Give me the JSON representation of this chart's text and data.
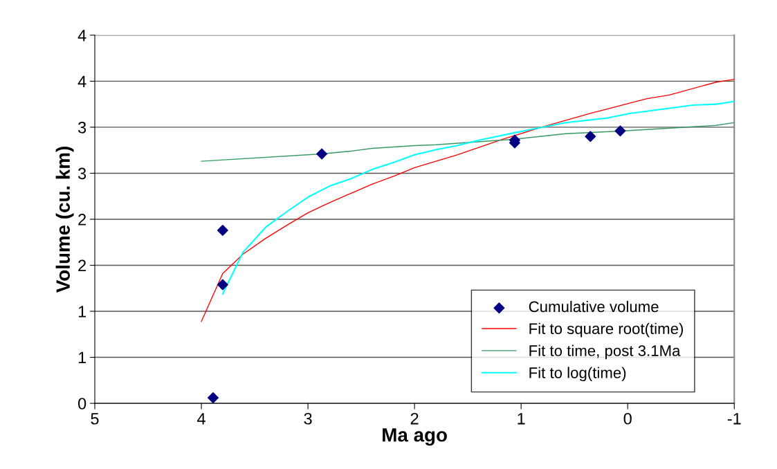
{
  "chart_data": {
    "type": "scatter",
    "xlabel": "Ma ago",
    "ylabel": "Volume (cu. km)",
    "xlim": [
      5,
      -1
    ],
    "xticks": [
      5,
      4,
      3,
      2,
      1,
      0,
      -1
    ],
    "ylim": [
      0,
      4
    ],
    "yticks": [
      0,
      {
        "value": 0.5,
        "label": "1"
      },
      1,
      {
        "value": 1.5,
        "label": "2"
      },
      2,
      {
        "value": 2.5,
        "label": "3"
      },
      3,
      {
        "value": 3.5,
        "label": "4"
      },
      4
    ],
    "grid": "y",
    "legend": "bottom right",
    "series": [
      {
        "name": "Cumulative volume",
        "marker": "diamond",
        "color": "#000080",
        "x": [
          3.89,
          3.8,
          3.8,
          2.87,
          1.06,
          1.06,
          0.35,
          0.07
        ],
        "values": [
          0.06,
          1.88,
          1.29,
          2.71,
          2.86,
          2.83,
          2.9,
          2.96
        ]
      },
      {
        "name": "Fit to square root(time)",
        "type": "line",
        "color": "#ff0000",
        "x": [
          4.0,
          3.8,
          3.61,
          3.4,
          3.19,
          3.0,
          2.8,
          2.6,
          2.4,
          2.19,
          2.0,
          1.6,
          1.17,
          0.78,
          0.35,
          -0.18,
          -0.39,
          -0.83,
          -1.0
        ],
        "values": [
          0.89,
          1.41,
          1.62,
          1.79,
          1.94,
          2.07,
          2.18,
          2.28,
          2.38,
          2.47,
          2.56,
          2.7,
          2.87,
          3.01,
          3.15,
          3.31,
          3.35,
          3.49,
          3.52
        ]
      },
      {
        "name": "Fit to time, post 3.1Ma",
        "type": "line",
        "color": "#339966",
        "x": [
          4.0,
          2.87,
          2.6,
          2.4,
          2.0,
          1.8,
          1.06,
          0.58,
          0.04,
          -0.83,
          -1.0
        ],
        "values": [
          2.63,
          2.71,
          2.74,
          2.77,
          2.8,
          2.81,
          2.87,
          2.93,
          2.96,
          3.02,
          3.05
        ]
      },
      {
        "name": "Fit to log(time)",
        "type": "line",
        "color": "#00ffff",
        "x": [
          3.8,
          3.61,
          3.4,
          3.19,
          3.0,
          2.8,
          2.6,
          2.4,
          2.19,
          2.0,
          1.78,
          1.6,
          1.39,
          1.06,
          0.58,
          0.19,
          -0.02,
          -0.61,
          -0.83,
          -1.0
        ],
        "values": [
          1.19,
          1.64,
          1.91,
          2.09,
          2.24,
          2.36,
          2.44,
          2.54,
          2.62,
          2.7,
          2.76,
          2.8,
          2.86,
          2.94,
          3.05,
          3.1,
          3.15,
          3.24,
          3.25,
          3.28
        ]
      }
    ]
  }
}
